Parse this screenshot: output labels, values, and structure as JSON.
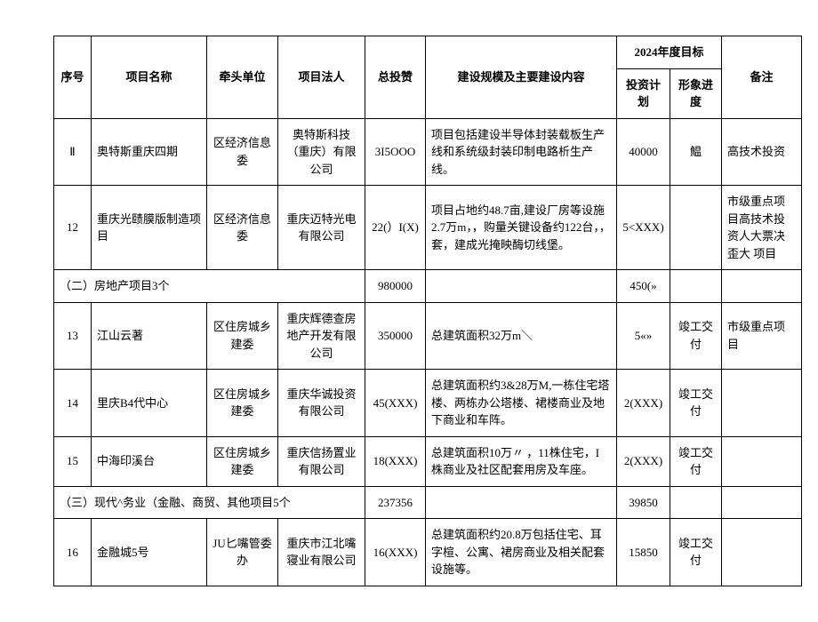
{
  "header": {
    "seq": "序号",
    "project_name": "项目名称",
    "lead_unit": "牵头单位",
    "legal_person": "项目法人",
    "total_invest": "总投赞",
    "scale": "建设规模及主要建设内容",
    "target_year": "2024年度目标",
    "plan": "投资计划",
    "progress": "形象进度",
    "note": "备注"
  },
  "rows": [
    {
      "seq": "Ⅱ",
      "name": "奥特斯重庆四期",
      "lead": "区经济信息委",
      "legal": "奥特斯科技（重庆）有限公司",
      "invest": "3I5OOO",
      "scale": "项目包括建设半导体封装载板生产线和系统级封装印制电路析生产线。",
      "plan": "40000",
      "progress": "鰛",
      "note": "高技术投资"
    },
    {
      "seq": "12",
      "name": "重庆光赜膜版制造项目",
      "lead": "区经济信息委",
      "legal": "重庆迈特光电有限公司",
      "invest": "22(）I(X)",
      "scale": "项目占地约48.7亩,建设厂房等设施2.7万m，，购量关键设备约122台，，套，建成光掩映酶切线堡。",
      "plan": "5<XXX)",
      "progress": "",
      "note": "市级重点项目高技术投资人大票决歪大\n项目"
    },
    {
      "group_label": "（二）房地产项目3个",
      "invest": "980000",
      "plan": "450(»"
    },
    {
      "seq": "13",
      "name": "江山云著",
      "lead": "区住房城乡建委",
      "legal": "重庆辉德查房地产开发有限公司",
      "invest": "350000",
      "scale": "总建筑面积32万m＼",
      "plan": "5«»",
      "progress": "竣工交付",
      "note": "市级重点项目"
    },
    {
      "seq": "14",
      "name": "里庆B4代中心",
      "lead": "区住房城乡建委",
      "legal": "重庆华诚投资有限公司",
      "invest": "45(XXX)",
      "scale": "总建筑面积约3&28万M,一栋住宅塔楼、两栋办公塔楼、裙楼商业及地下商业和车阵。",
      "plan": "2(XXX)",
      "progress": "竣工交付",
      "note": ""
    },
    {
      "seq": "15",
      "name": "中海印溪台",
      "lead": "区住房城乡建委",
      "legal": "重庆信扬置业有限公司",
      "invest": "18(XXX)",
      "scale": "总建筑面积10万〃 ，11株住宅，I株商业及社区配套用房及车座。",
      "plan": "2(XXX)",
      "progress": "竣工交付",
      "note": ""
    },
    {
      "group_label": "（三）现代^务业（金融、商贸、其他项目5个",
      "invest": "237356",
      "plan": "39850"
    },
    {
      "seq": "16",
      "name": "金融城5号",
      "lead": "JU匕嘴管委办",
      "legal": "重庆市江北嘴寝业有限公司",
      "invest": "16(XXX)",
      "scale": "总建筑面积约20.8万包括住宅、耳字楦、公寓、裙房商业及相关配套设施等。",
      "plan": "15850",
      "progress": "竣工交付",
      "note": ""
    }
  ]
}
